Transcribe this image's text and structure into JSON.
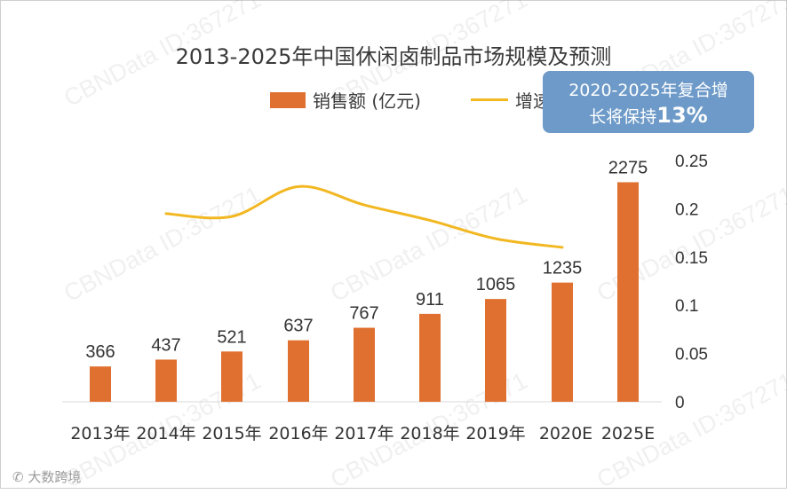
{
  "chart_data": {
    "type": "bar",
    "title": "2013-2025年中国休闲卤制品市场规模及预测",
    "categories": [
      "2013年",
      "2014年",
      "2015年",
      "2016年",
      "2017年",
      "2018年",
      "2019年",
      "2020E",
      "2025E"
    ],
    "series": [
      {
        "name": "销售额 (亿元)",
        "type": "bar",
        "axis": "left",
        "color": "#e0702f",
        "values": [
          366,
          437,
          521,
          637,
          767,
          911,
          1065,
          1235,
          2275
        ]
      },
      {
        "name": "增速",
        "type": "line",
        "axis": "right",
        "color": "#f2b822",
        "values": [
          null,
          0.195,
          0.192,
          0.223,
          0.204,
          0.188,
          0.169,
          0.16,
          null
        ]
      }
    ],
    "y_left_range": [
      0,
      2500
    ],
    "y_right_range": [
      0,
      0.25
    ],
    "y_right_ticks": [
      "0",
      "0.05",
      "0.1",
      "0.15",
      "0.2",
      "0.25"
    ],
    "legend_placement": "top",
    "grid": false
  },
  "callout": {
    "line1": "2020-2025年复合增",
    "line2_prefix": "长将保持",
    "line2_value": "13%"
  },
  "watermark_text": "CBNData ID:367271",
  "brand_text": "大数跨境"
}
